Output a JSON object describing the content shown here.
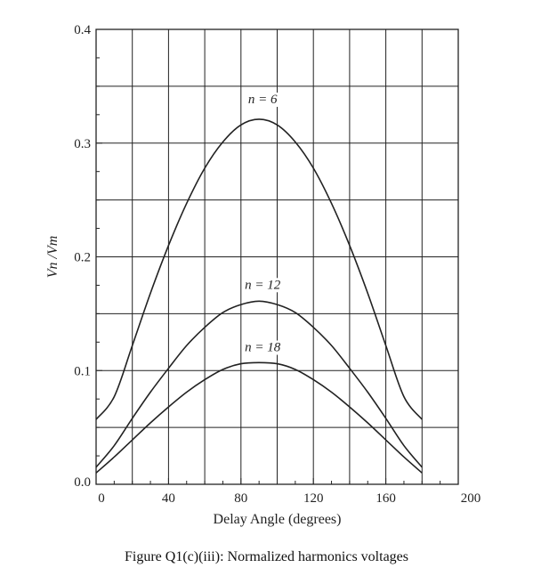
{
  "caption": "Figure Q1(c)(iii): Normalized harmonics voltages",
  "chart_data": {
    "type": "line",
    "xlabel": "Delay Angle (degrees)",
    "ylabel": "Vn /Vm",
    "xlim": [
      0,
      180
    ],
    "ylim": [
      0,
      0.4
    ],
    "x_ticks": [
      "0",
      "40",
      "80",
      "120",
      "160",
      "200"
    ],
    "y_ticks": [
      "0.0",
      "0.1",
      "0.2",
      "0.3",
      "0.4"
    ],
    "grid": true,
    "series": [
      {
        "name": "n = 6",
        "x": [
          0,
          10,
          20,
          30,
          40,
          50,
          60,
          70,
          80,
          90,
          100,
          110,
          120,
          130,
          140,
          150,
          160,
          170,
          180
        ],
        "values": [
          0.057,
          0.077,
          0.122,
          0.168,
          0.21,
          0.247,
          0.278,
          0.301,
          0.316,
          0.321,
          0.316,
          0.301,
          0.278,
          0.247,
          0.21,
          0.168,
          0.122,
          0.077,
          0.057
        ]
      },
      {
        "name": "n = 12",
        "x": [
          0,
          10,
          20,
          30,
          40,
          50,
          60,
          70,
          80,
          90,
          100,
          110,
          120,
          130,
          140,
          150,
          160,
          170,
          180
        ],
        "values": [
          0.015,
          0.034,
          0.058,
          0.081,
          0.102,
          0.122,
          0.138,
          0.151,
          0.158,
          0.161,
          0.158,
          0.151,
          0.138,
          0.122,
          0.102,
          0.081,
          0.058,
          0.034,
          0.015
        ]
      },
      {
        "name": "n = 18",
        "x": [
          0,
          10,
          20,
          30,
          40,
          50,
          60,
          70,
          80,
          90,
          100,
          110,
          120,
          130,
          140,
          150,
          160,
          170,
          180
        ],
        "values": [
          0.01,
          0.024,
          0.039,
          0.054,
          0.068,
          0.081,
          0.092,
          0.101,
          0.106,
          0.107,
          0.106,
          0.101,
          0.092,
          0.081,
          0.068,
          0.054,
          0.039,
          0.024,
          0.01
        ]
      }
    ],
    "annotations": [
      {
        "text": "n = 6",
        "x": 92,
        "y": 0.335
      },
      {
        "text": "n = 12",
        "x": 92,
        "y": 0.172
      },
      {
        "text": "n = 18",
        "x": 92,
        "y": 0.117
      }
    ]
  }
}
